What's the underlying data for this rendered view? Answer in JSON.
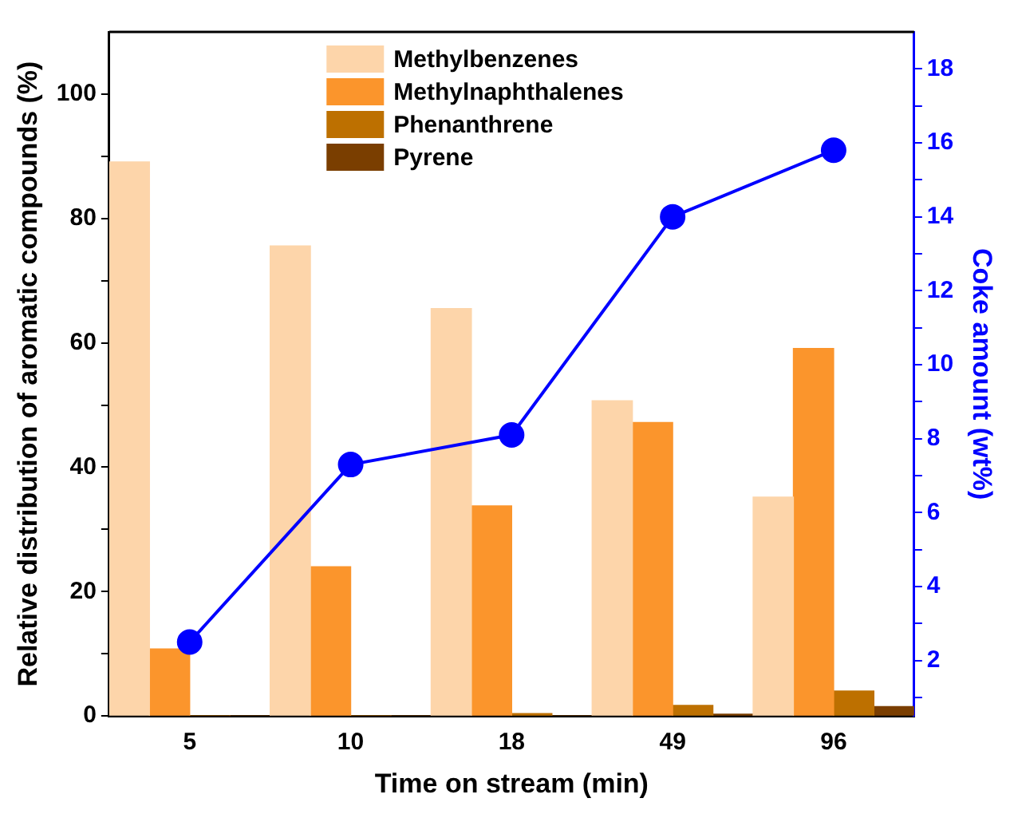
{
  "chart_data": {
    "type": "bar",
    "xlabel": "Time on stream (min)",
    "ylabel": "Relative distribution of aromatic compounds (%)",
    "y2label": "Coke amount (wt%)",
    "categories": [
      "5",
      "10",
      "18",
      "49",
      "96"
    ],
    "series": [
      {
        "name": "Methylbenzenes",
        "color": "#fdd5aa",
        "values": [
          89.1,
          75.6,
          65.5,
          50.7,
          35.2
        ]
      },
      {
        "name": "Methylnaphthalenes",
        "color": "#fb952c",
        "values": [
          10.8,
          24.0,
          33.8,
          47.2,
          59.1
        ]
      },
      {
        "name": "Phenanthrene",
        "color": "#bd7000",
        "values": [
          0,
          0,
          0.4,
          1.7,
          4.0
        ]
      },
      {
        "name": "Pyrene",
        "color": "#7a3e00",
        "values": [
          0,
          0,
          0,
          0.3,
          1.5
        ]
      },
      {
        "type": "line",
        "axis": "y2",
        "color": "#0000ff",
        "marker": "circle",
        "values": [
          2.5,
          7.3,
          8.1,
          14.0,
          15.8
        ]
      }
    ],
    "ylim": [
      0,
      110
    ],
    "yticks": [
      0,
      {
        "value": 10,
        "label": null
      },
      20,
      {
        "value": 30,
        "label": null
      },
      40,
      {
        "value": 50,
        "label": null
      },
      60,
      {
        "value": 70,
        "label": null
      },
      80,
      {
        "value": 90,
        "label": null
      },
      100
    ],
    "y2lim": [
      0.5,
      19
    ],
    "y2ticks": [
      {
        "value": 1,
        "label": null
      },
      2,
      {
        "value": 3,
        "label": null
      },
      4,
      {
        "value": 5,
        "label": null
      },
      6,
      {
        "value": 7,
        "label": null
      },
      8,
      {
        "value": 9,
        "label": null
      },
      10,
      {
        "value": 11,
        "label": null
      },
      12,
      {
        "value": 13,
        "label": null
      },
      14,
      {
        "value": 15,
        "label": null
      },
      16,
      {
        "value": 17,
        "label": null
      },
      18
    ],
    "legend": "top",
    "grid": false
  }
}
